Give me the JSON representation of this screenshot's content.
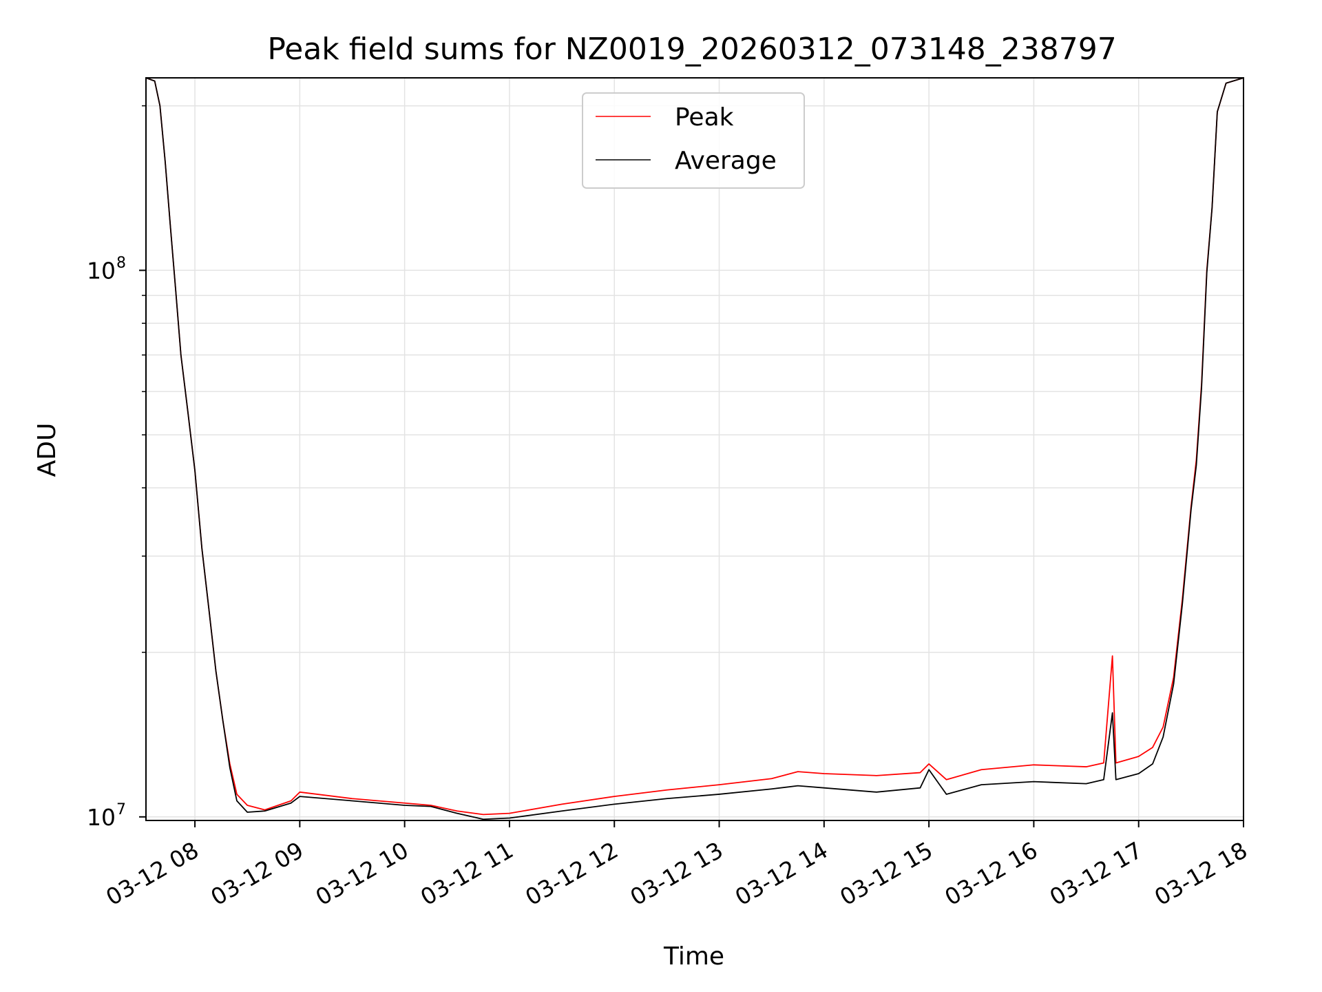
{
  "chart_data": {
    "type": "line",
    "title": "Peak field sums for NZ0019_20260312_073148_238797",
    "xlabel": "Time",
    "ylabel": "ADU",
    "yscale": "log",
    "ylim": [
      9850000,
      225000000
    ],
    "xlim": [
      "2026-03-12 07:32",
      "2026-03-12 18:00"
    ],
    "grid": true,
    "legend_position": "upper center",
    "x_ticks": [
      {
        "t": "2026-03-12 08:00",
        "label": "03-12 08"
      },
      {
        "t": "2026-03-12 09:00",
        "label": "03-12 09"
      },
      {
        "t": "2026-03-12 10:00",
        "label": "03-12 10"
      },
      {
        "t": "2026-03-12 11:00",
        "label": "03-12 11"
      },
      {
        "t": "2026-03-12 12:00",
        "label": "03-12 12"
      },
      {
        "t": "2026-03-12 13:00",
        "label": "03-12 13"
      },
      {
        "t": "2026-03-12 14:00",
        "label": "03-12 14"
      },
      {
        "t": "2026-03-12 15:00",
        "label": "03-12 15"
      },
      {
        "t": "2026-03-12 16:00",
        "label": "03-12 16"
      },
      {
        "t": "2026-03-12 17:00",
        "label": "03-12 17"
      },
      {
        "t": "2026-03-12 18:00",
        "label": "03-12 18"
      }
    ],
    "y_major_ticks": [
      {
        "v": 10000000,
        "base": "10",
        "exp": "7"
      },
      {
        "v": 100000000,
        "base": "10",
        "exp": "8"
      }
    ],
    "y_minor_ticks": [
      20000000,
      30000000,
      40000000,
      50000000,
      60000000,
      70000000,
      80000000,
      90000000,
      200000000
    ],
    "series": [
      {
        "name": "Peak",
        "color": "#ff0000",
        "points": [
          [
            "2026-03-12 07:32",
            225000000
          ],
          [
            "2026-03-12 07:37",
            222000000
          ],
          [
            "2026-03-12 07:40",
            200000000
          ],
          [
            "2026-03-12 07:43",
            158000000
          ],
          [
            "2026-03-12 07:46",
            120000000
          ],
          [
            "2026-03-12 07:49",
            92000000
          ],
          [
            "2026-03-12 07:52",
            70000000
          ],
          [
            "2026-03-12 07:56",
            55000000
          ],
          [
            "2026-03-12 08:00",
            43000000
          ],
          [
            "2026-03-12 08:04",
            31000000
          ],
          [
            "2026-03-12 08:08",
            24000000
          ],
          [
            "2026-03-12 08:12",
            18500000
          ],
          [
            "2026-03-12 08:16",
            15000000
          ],
          [
            "2026-03-12 08:20",
            12500000
          ],
          [
            "2026-03-12 08:24",
            11000000
          ],
          [
            "2026-03-12 08:30",
            10500000
          ],
          [
            "2026-03-12 08:40",
            10300000
          ],
          [
            "2026-03-12 08:55",
            10700000
          ],
          [
            "2026-03-12 09:00",
            11100000
          ],
          [
            "2026-03-12 09:30",
            10800000
          ],
          [
            "2026-03-12 10:00",
            10600000
          ],
          [
            "2026-03-12 10:15",
            10500000
          ],
          [
            "2026-03-12 10:30",
            10250000
          ],
          [
            "2026-03-12 10:45",
            10100000
          ],
          [
            "2026-03-12 11:00",
            10150000
          ],
          [
            "2026-03-12 11:30",
            10550000
          ],
          [
            "2026-03-12 12:00",
            10900000
          ],
          [
            "2026-03-12 12:30",
            11200000
          ],
          [
            "2026-03-12 13:00",
            11450000
          ],
          [
            "2026-03-12 13:30",
            11750000
          ],
          [
            "2026-03-12 13:45",
            12100000
          ],
          [
            "2026-03-12 14:00",
            12000000
          ],
          [
            "2026-03-12 14:30",
            11900000
          ],
          [
            "2026-03-12 14:55",
            12050000
          ],
          [
            "2026-03-12 15:00",
            12500000
          ],
          [
            "2026-03-12 15:10",
            11700000
          ],
          [
            "2026-03-12 15:30",
            12200000
          ],
          [
            "2026-03-12 16:00",
            12450000
          ],
          [
            "2026-03-12 16:30",
            12350000
          ],
          [
            "2026-03-12 16:40",
            12550000
          ],
          [
            "2026-03-12 16:45",
            19700000
          ],
          [
            "2026-03-12 16:47",
            12550000
          ],
          [
            "2026-03-12 17:00",
            12900000
          ],
          [
            "2026-03-12 17:08",
            13400000
          ],
          [
            "2026-03-12 17:14",
            14600000
          ],
          [
            "2026-03-12 17:20",
            18000000
          ],
          [
            "2026-03-12 17:25",
            25000000
          ],
          [
            "2026-03-12 17:30",
            37000000
          ],
          [
            "2026-03-12 17:33",
            45000000
          ],
          [
            "2026-03-12 17:36",
            62000000
          ],
          [
            "2026-03-12 17:39",
            100000000
          ],
          [
            "2026-03-12 17:42",
            130000000
          ],
          [
            "2026-03-12 17:45",
            195000000
          ],
          [
            "2026-03-12 17:50",
            220000000
          ],
          [
            "2026-03-12 18:00",
            225000000
          ]
        ]
      },
      {
        "name": "Average",
        "color": "#000000",
        "points": [
          [
            "2026-03-12 07:32",
            225000000
          ],
          [
            "2026-03-12 07:37",
            222000000
          ],
          [
            "2026-03-12 07:40",
            200000000
          ],
          [
            "2026-03-12 07:43",
            158000000
          ],
          [
            "2026-03-12 07:46",
            120000000
          ],
          [
            "2026-03-12 07:49",
            92000000
          ],
          [
            "2026-03-12 07:52",
            70000000
          ],
          [
            "2026-03-12 07:56",
            55000000
          ],
          [
            "2026-03-12 08:00",
            43000000
          ],
          [
            "2026-03-12 08:04",
            31000000
          ],
          [
            "2026-03-12 08:08",
            24000000
          ],
          [
            "2026-03-12 08:12",
            18500000
          ],
          [
            "2026-03-12 08:16",
            15000000
          ],
          [
            "2026-03-12 08:20",
            12300000
          ],
          [
            "2026-03-12 08:24",
            10700000
          ],
          [
            "2026-03-12 08:30",
            10200000
          ],
          [
            "2026-03-12 08:40",
            10250000
          ],
          [
            "2026-03-12 08:55",
            10600000
          ],
          [
            "2026-03-12 09:00",
            10900000
          ],
          [
            "2026-03-12 09:30",
            10700000
          ],
          [
            "2026-03-12 10:00",
            10500000
          ],
          [
            "2026-03-12 10:15",
            10450000
          ],
          [
            "2026-03-12 10:30",
            10150000
          ],
          [
            "2026-03-12 10:45",
            9900000
          ],
          [
            "2026-03-12 11:00",
            9950000
          ],
          [
            "2026-03-12 11:30",
            10250000
          ],
          [
            "2026-03-12 12:00",
            10550000
          ],
          [
            "2026-03-12 12:30",
            10800000
          ],
          [
            "2026-03-12 13:00",
            11000000
          ],
          [
            "2026-03-12 13:30",
            11250000
          ],
          [
            "2026-03-12 13:45",
            11400000
          ],
          [
            "2026-03-12 14:00",
            11300000
          ],
          [
            "2026-03-12 14:30",
            11100000
          ],
          [
            "2026-03-12 14:55",
            11300000
          ],
          [
            "2026-03-12 15:00",
            12200000
          ],
          [
            "2026-03-12 15:10",
            11000000
          ],
          [
            "2026-03-12 15:30",
            11450000
          ],
          [
            "2026-03-12 16:00",
            11600000
          ],
          [
            "2026-03-12 16:30",
            11500000
          ],
          [
            "2026-03-12 16:40",
            11700000
          ],
          [
            "2026-03-12 16:45",
            15500000
          ],
          [
            "2026-03-12 16:47",
            11700000
          ],
          [
            "2026-03-12 17:00",
            12000000
          ],
          [
            "2026-03-12 17:08",
            12500000
          ],
          [
            "2026-03-12 17:14",
            14000000
          ],
          [
            "2026-03-12 17:20",
            17500000
          ],
          [
            "2026-03-12 17:25",
            24500000
          ],
          [
            "2026-03-12 17:30",
            36500000
          ],
          [
            "2026-03-12 17:33",
            44000000
          ],
          [
            "2026-03-12 17:36",
            61000000
          ],
          [
            "2026-03-12 17:39",
            99000000
          ],
          [
            "2026-03-12 17:42",
            130000000
          ],
          [
            "2026-03-12 17:45",
            195000000
          ],
          [
            "2026-03-12 17:50",
            220000000
          ],
          [
            "2026-03-12 18:00",
            225000000
          ]
        ]
      }
    ]
  }
}
